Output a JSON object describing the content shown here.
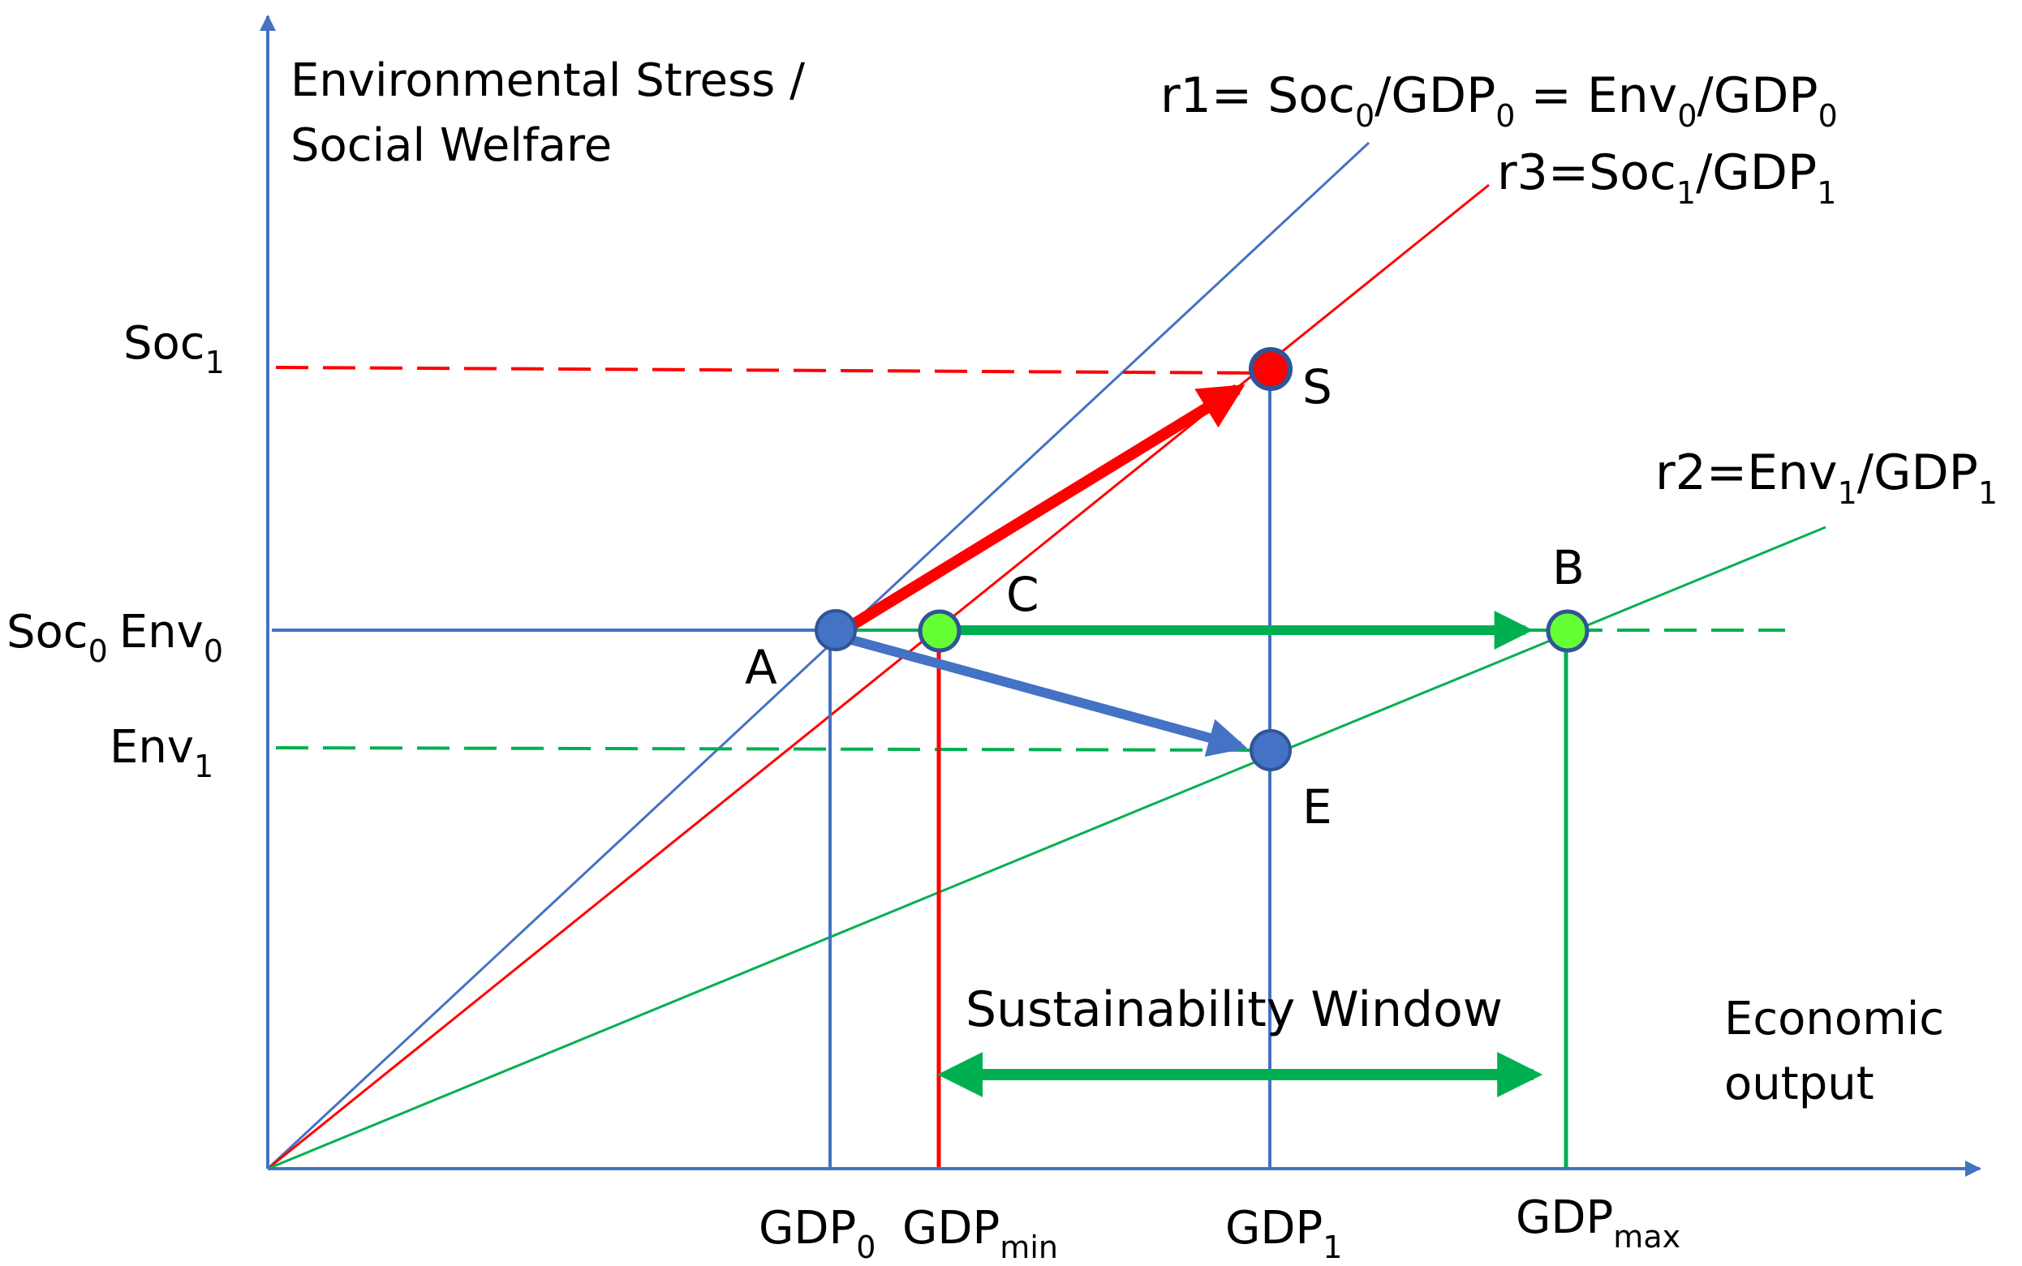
{
  "colors": {
    "axis": "#4472C4",
    "social": "#FF0000",
    "environment": "#00B050",
    "point_green_fill": "#66FF33",
    "point_red_fill": "#FF0000",
    "point_blue_fill": "#4472C4",
    "text": "#000000"
  },
  "y_axis": {
    "label_line1": "Environmental Stress /",
    "label_line2": "Social Welfare",
    "ticks": [
      {
        "main": "Soc",
        "sub": "1",
        "main2": "",
        "sub2": ""
      },
      {
        "main": "Soc",
        "sub": "0",
        "main2": "Env",
        "sub2": "0"
      },
      {
        "main": "Env",
        "sub": "1",
        "main2": "",
        "sub2": ""
      }
    ]
  },
  "x_axis": {
    "label_line1": "Economic",
    "label_line2": "output",
    "ticks": [
      {
        "main": "GDP",
        "sub": "0"
      },
      {
        "main": "GDP",
        "sub": "min"
      },
      {
        "main": "GDP",
        "sub": "1"
      },
      {
        "main": "GDP",
        "sub": "max"
      }
    ]
  },
  "rays": {
    "r1": {
      "prefix": "r1= Soc",
      "s1": "0",
      "mid1": "/GDP",
      "s2": "0",
      "mid2": " = Env",
      "s3": "0",
      "mid3": "/GDP",
      "s4": "0"
    },
    "r3": {
      "prefix": "r3=Soc",
      "s1": "1",
      "mid1": "/GDP",
      "s2": "1"
    },
    "r2": {
      "prefix": "r2=Env",
      "s1": "1",
      "mid1": "/GDP",
      "s2": "1"
    }
  },
  "points": {
    "A": "A",
    "B": "B",
    "C": "C",
    "S": "S",
    "E": "E"
  },
  "window_label": "Sustainability Window",
  "icons": {
    "arrow_head": "triangle-arrowhead",
    "point_marker": "circle-marker"
  }
}
